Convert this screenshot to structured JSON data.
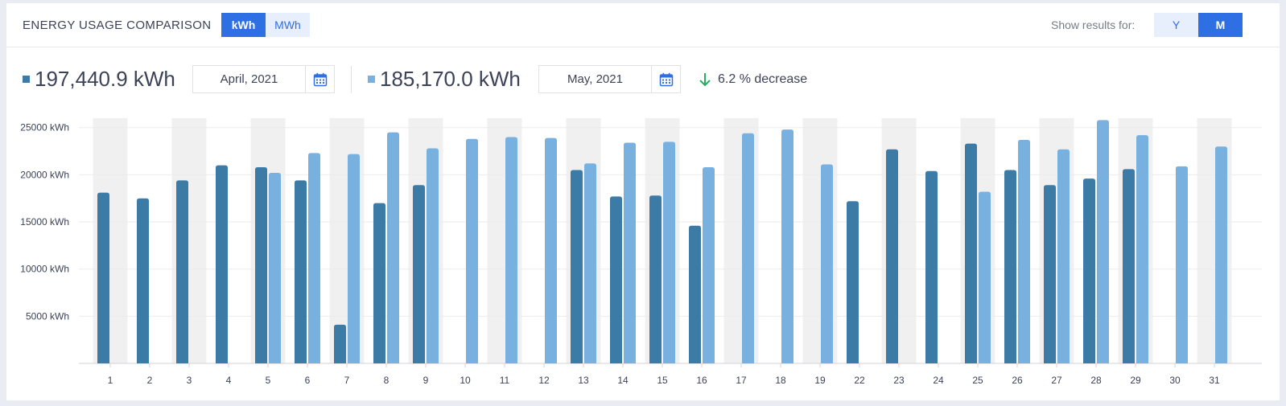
{
  "header": {
    "title": "ENERGY USAGE COMPARISON",
    "unit_options": [
      "kWh",
      "MWh"
    ],
    "unit_selected": "kWh",
    "show_label": "Show results for:",
    "period_options": [
      "Y",
      "M"
    ],
    "period_selected": "M"
  },
  "summary": {
    "series_a": {
      "total": "197,440.9 kWh",
      "date": "April, 2021",
      "color": "#3d7ba7"
    },
    "series_b": {
      "total": "185,170.0 kWh",
      "date": "May, 2021",
      "color": "#78b1e0"
    },
    "change": {
      "text": "6.2 % decrease",
      "direction": "down",
      "color": "#27ae60"
    }
  },
  "icons": {
    "calendar": "calendar-icon",
    "arrow": "arrow-down-icon"
  },
  "colors": {
    "accent": "#2f6fe4",
    "accent_light": "#e7eefc",
    "band": "#f0f0f0"
  },
  "chart_data": {
    "type": "bar",
    "categories": [
      "1",
      "2",
      "3",
      "4",
      "5",
      "6",
      "7",
      "8",
      "9",
      "10",
      "11",
      "12",
      "13",
      "14",
      "15",
      "16",
      "17",
      "18",
      "19",
      "22",
      "23",
      "24",
      "25",
      "26",
      "27",
      "28",
      "29",
      "30",
      "31"
    ],
    "series": [
      {
        "values": [
          18100,
          17500,
          19400,
          21000,
          20800,
          19400,
          4100,
          17000,
          18900,
          null,
          null,
          null,
          20500,
          17700,
          17800,
          14600,
          null,
          null,
          null,
          17200,
          22700,
          20400,
          23300,
          20500,
          18900,
          19600,
          20600,
          null,
          null
        ],
        "color": "#3d7ba7"
      },
      {
        "values": [
          null,
          null,
          null,
          null,
          20200,
          22300,
          22200,
          24500,
          22800,
          23800,
          24000,
          23900,
          21200,
          23400,
          23500,
          20800,
          24400,
          24800,
          21100,
          null,
          null,
          null,
          18200,
          23700,
          22700,
          25800,
          24200,
          20900,
          23000
        ],
        "color": "#78b1e0"
      }
    ],
    "y_ticks": [
      "5000 kWh",
      "10000 kWh",
      "15000 kWh",
      "20000 kWh",
      "25000 kWh"
    ],
    "y_tick_values": [
      5000,
      10000,
      15000,
      20000,
      25000
    ],
    "ylim": [
      0,
      26000
    ],
    "grid": true,
    "alternating_bands": true
  }
}
